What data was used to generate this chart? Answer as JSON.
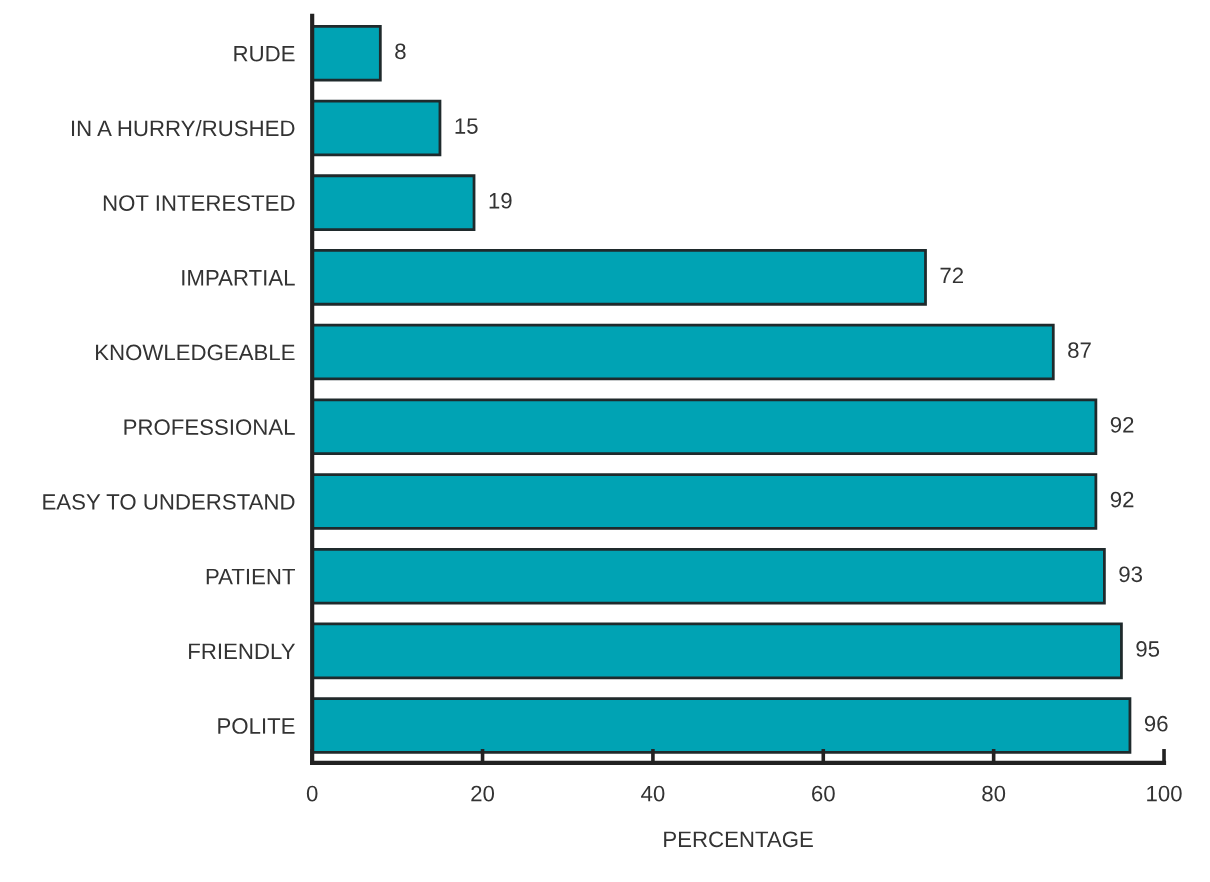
{
  "chart_data": {
    "type": "bar",
    "orientation": "horizontal",
    "xlabel": "PERCENTAGE",
    "categories": [
      "RUDE",
      "IN A HURRY/RUSHED",
      "NOT INTERESTED",
      "IMPARTIAL",
      "KNOWLEDGEABLE",
      "PROFESSIONAL",
      "EASY TO UNDERSTAND",
      "PATIENT",
      "FRIENDLY",
      "POLITE"
    ],
    "values": [
      8,
      15,
      19,
      72,
      87,
      92,
      92,
      93,
      95,
      96
    ],
    "color": "#00a3b4",
    "xlim": [
      0,
      100
    ],
    "xticks": [
      0,
      20,
      40,
      60,
      80,
      100
    ],
    "data_labels": true,
    "grid": false
  }
}
